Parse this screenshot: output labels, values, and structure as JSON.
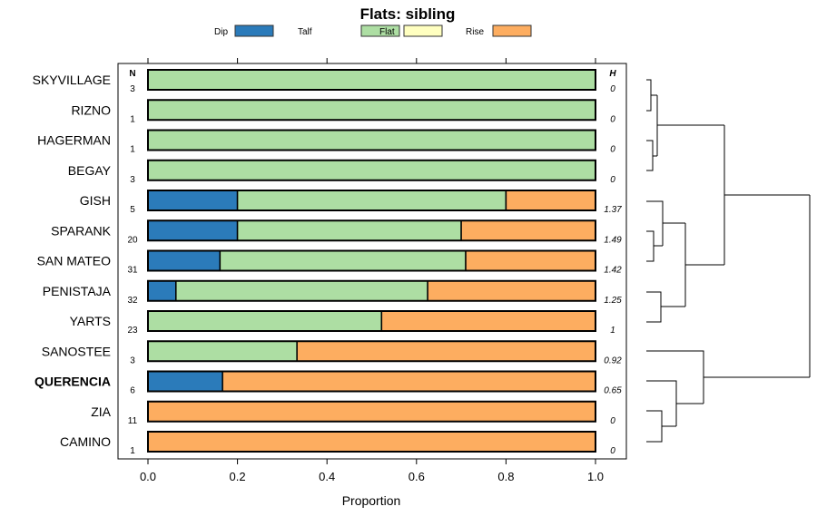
{
  "chart_data": {
    "type": "bar",
    "stacked": true,
    "orientation": "horizontal",
    "title": "Flats: sibling",
    "xlabel": "Proportion",
    "ylabel": "",
    "xlim": [
      0,
      1
    ],
    "xticks": [
      "0.0",
      "0.2",
      "0.4",
      "0.6",
      "0.8",
      "1.0"
    ],
    "legend": {
      "placement": "top",
      "entries": [
        "Dip",
        "Talf",
        "Flat",
        "Rise"
      ]
    },
    "colors": {
      "Dip": "#2b7bba",
      "Talf": "#addea3",
      "Flat": "#ffffc0",
      "Rise": "#fdad60"
    },
    "n_header": "N",
    "h_header": "H",
    "categories": [
      "SKYVILLAGE",
      "RIZNO",
      "HAGERMAN",
      "BEGAY",
      "GISH",
      "SPARANK",
      "SAN MATEO",
      "PENISTAJA",
      "YARTS",
      "SANOSTEE",
      "QUERENCIA",
      "ZIA",
      "CAMINO"
    ],
    "highlighted": "QUERENCIA",
    "n": [
      "3",
      "1",
      "1",
      "3",
      "5",
      "20",
      "31",
      "32",
      "23",
      "3",
      "6",
      "11",
      "1"
    ],
    "h": [
      "0",
      "0",
      "0",
      "0",
      "1.37",
      "1.49",
      "1.42",
      "1.25",
      "1",
      "0.92",
      "0.65",
      "0",
      "0"
    ],
    "series": [
      {
        "name": "Dip",
        "values": [
          0,
          0,
          0,
          0,
          0.2,
          0.2,
          0.161,
          0.0625,
          0,
          0,
          0.1667,
          0,
          0
        ]
      },
      {
        "name": "Talf",
        "values": [
          1,
          1,
          1,
          1,
          0.6,
          0.5,
          0.549,
          0.5625,
          0.522,
          0.333,
          0,
          0,
          0
        ]
      },
      {
        "name": "Flat",
        "values": [
          0,
          0,
          0,
          0,
          0,
          0,
          0,
          0,
          0,
          0,
          0,
          0,
          0
        ]
      },
      {
        "name": "Rise",
        "values": [
          0,
          0,
          0,
          0,
          0.2,
          0.3,
          0.29,
          0.375,
          0.478,
          0.667,
          0.8333,
          1,
          1
        ]
      }
    ],
    "dendrogram": "hierarchical clustering of rows (right side)"
  }
}
